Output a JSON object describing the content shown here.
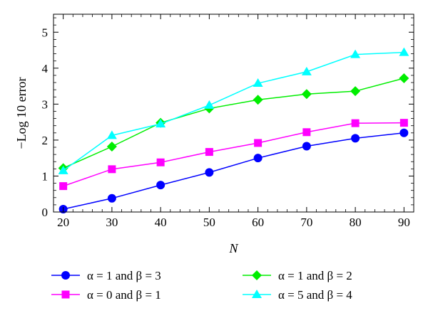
{
  "chart_data": {
    "type": "line",
    "xlabel": "N",
    "ylabel": "−Log 10 error",
    "xlim": [
      18,
      92
    ],
    "ylim": [
      0,
      5.5
    ],
    "xticks": [
      20,
      30,
      40,
      50,
      60,
      70,
      80,
      90
    ],
    "yticks": [
      0,
      1,
      2,
      3,
      4,
      5
    ],
    "x": [
      20,
      30,
      40,
      50,
      60,
      70,
      80,
      90
    ],
    "grid": false,
    "legend_position": "bottom",
    "series": [
      {
        "name": "α = 1 and β = 3",
        "color": "#0000ff",
        "marker": "circle",
        "values": [
          0.08,
          0.38,
          0.75,
          1.1,
          1.5,
          1.83,
          2.05,
          2.2
        ]
      },
      {
        "name": "α = 1 and β = 2",
        "color": "#00ee00",
        "marker": "diamond",
        "values": [
          1.22,
          1.82,
          2.48,
          2.88,
          3.12,
          3.28,
          3.36,
          3.72
        ]
      },
      {
        "name": "α = 0 and β = 1",
        "color": "#ff00ff",
        "marker": "square",
        "values": [
          0.72,
          1.19,
          1.38,
          1.67,
          1.92,
          2.22,
          2.47,
          2.48
        ]
      },
      {
        "name": "α = 5 and β = 4",
        "color": "#00ffff",
        "marker": "triangle",
        "values": [
          1.15,
          2.13,
          2.45,
          2.97,
          3.58,
          3.9,
          4.38,
          4.44
        ]
      }
    ]
  }
}
